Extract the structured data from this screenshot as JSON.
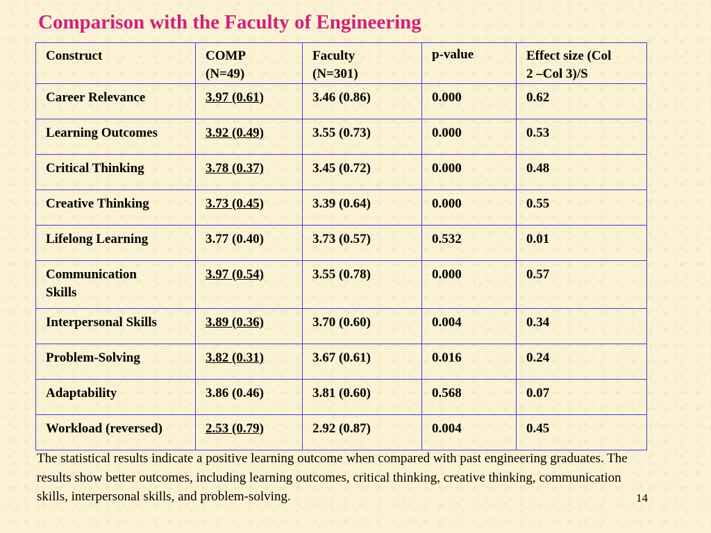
{
  "slide": {
    "title": "Comparison with the Faculty of Engineering",
    "page_number": "14"
  },
  "table": {
    "headers": {
      "construct": "Construct",
      "comp": "COMP\n(N=49)",
      "faculty": "Faculty\n(N=301)",
      "pvalue": "p-value",
      "effect": "Effect size (Col\n2 –Col 3)/S"
    },
    "rows": [
      {
        "construct": "Career Relevance",
        "comp": "3.97 (0.61)",
        "faculty": "3.46 (0.86)",
        "pvalue": "0.000",
        "effect": "0.62"
      },
      {
        "construct": "Learning Outcomes",
        "comp": "3.92 (0.49)",
        "faculty": "3.55 (0.73)",
        "pvalue": "0.000",
        "effect": "0.53"
      },
      {
        "construct": "Critical Thinking",
        "comp": "3.78 (0.37)",
        "faculty": "3.45 (0.72)",
        "pvalue": "0.000",
        "effect": "0.48"
      },
      {
        "construct": "Creative Thinking",
        "comp": "3.73 (0.45)",
        "faculty": "3.39 (0.64)",
        "pvalue": "0.000",
        "effect": "0.55"
      },
      {
        "construct": "Lifelong Learning",
        "comp": "3.77 (0.40)",
        "faculty": "3.73 (0.57)",
        "pvalue": "0.532",
        "effect": "0.01"
      },
      {
        "construct": "Communication\nSkills",
        "comp": "3.97 (0.54)",
        "faculty": "3.55 (0.78)",
        "pvalue": "0.000",
        "effect": "0.57"
      },
      {
        "construct": "Interpersonal Skills",
        "comp": "3.89 (0.36)",
        "faculty": "3.70 (0.60)",
        "pvalue": "0.004",
        "effect": "0.34"
      },
      {
        "construct": "Problem-Solving",
        "comp": "3.82 (0.31)",
        "faculty": "3.67 (0.61)",
        "pvalue": "0.016",
        "effect": "0.24"
      },
      {
        "construct": "Adaptability",
        "comp": "3.86 (0.46)",
        "faculty": "3.81 (0.60)",
        "pvalue": "0.568",
        "effect": "0.07"
      },
      {
        "construct": "Workload (reversed)",
        "comp": "2.53 (0.79)",
        "faculty": "2.92 (0.87)",
        "pvalue": "0.004",
        "effect": "0.45"
      }
    ]
  },
  "caption": "The statistical results indicate a positive learning outcome when compared with past engineering graduates. The results show better outcomes, including learning outcomes, critical thinking, creative thinking, communication skills, interpersonal skills, and problem-solving.",
  "colors": {
    "title": "#d1207a",
    "table_border": "#3f3fd8",
    "background": "#fbf1d4"
  }
}
